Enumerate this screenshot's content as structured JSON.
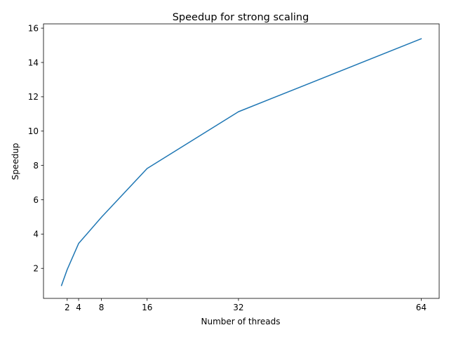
{
  "chart_data": {
    "type": "line",
    "title": "Speedup for strong scaling",
    "xlabel": "Number of threads",
    "ylabel": "Speedup",
    "x_ticks": [
      2,
      4,
      8,
      16,
      32,
      64
    ],
    "y_ticks": [
      2,
      4,
      6,
      8,
      10,
      12,
      14,
      16
    ],
    "xlim": [
      -2.15,
      67.15
    ],
    "ylim": [
      0.25,
      16.25
    ],
    "grid": false,
    "series": [
      {
        "color": "#1f77b4",
        "x": [
          1,
          2,
          4,
          8,
          16,
          32,
          64
        ],
        "y": [
          1.0,
          1.93,
          3.45,
          4.98,
          7.82,
          11.13,
          15.38
        ]
      }
    ]
  }
}
